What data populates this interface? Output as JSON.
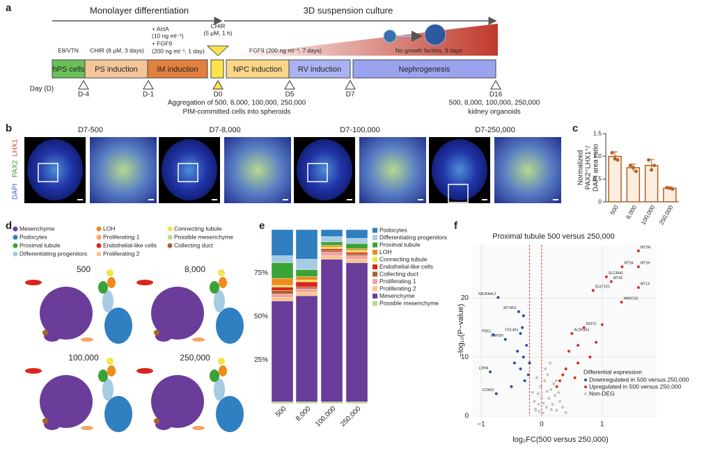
{
  "panel_a": {
    "label": "a",
    "phase_left": "Monolayer differentiation",
    "phase_right": "3D suspension culture",
    "condition_labels": [
      "E8/VTN",
      "CHIR (8 μM, 3 days)",
      "+ ActA",
      "(10 ng ml⁻¹)",
      "+ FGF9",
      "(200 ng ml⁻¹, 1 day)",
      "CHIR",
      "(5 μM, 1 h)",
      "FGF9 (200 ng ml⁻¹, 7 days)",
      "No growth factors, 9 days"
    ],
    "stages": [
      "hPS cells",
      "PS induction",
      "IM induction",
      "NPC induction",
      "RV induction",
      "Nephrogenesis"
    ],
    "day_axis_label": "Day (D)",
    "days": [
      "D-4",
      "D-1",
      "D0",
      "D5",
      "D7",
      "D16"
    ],
    "notes": [
      "Aggregation of 500, 8,000, 100,000, 250,000",
      "PIM-committed cells into spheroids",
      "500, 8,000, 100,000, 250,000",
      "kidney organoids"
    ]
  },
  "panel_b": {
    "label": "b",
    "stain_labels": [
      "DAPI",
      "PAX2",
      "LHX1"
    ],
    "titles": [
      "D7-500",
      "D7-8,000",
      "D7-100,000",
      "D7-250,000"
    ]
  },
  "panel_d": {
    "label": "d",
    "legend": [
      {
        "name": "Mesenchyme",
        "color": "#6a3d9a"
      },
      {
        "name": "Podocytes",
        "color": "#2f7fc1"
      },
      {
        "name": "Proximal tubule",
        "color": "#3aa335"
      },
      {
        "name": "Differentiating progenitors",
        "color": "#a6cbe3"
      },
      {
        "name": "LOH",
        "color": "#f08a1c"
      },
      {
        "name": "Proliferating 1",
        "color": "#f7a35c"
      },
      {
        "name": "Endothelial-like cells",
        "color": "#d9261c"
      },
      {
        "name": "Proliferating 2",
        "color": "#fbc58a"
      },
      {
        "name": "Connecting tubule",
        "color": "#f2e447"
      },
      {
        "name": "Possible mesenchyme",
        "color": "#b5dc8c"
      },
      {
        "name": "Collecting duct",
        "color": "#a8642a"
      }
    ],
    "umap_titles": [
      "500",
      "8,000",
      "100,000",
      "250,000"
    ]
  },
  "chart_data": [
    {
      "panel": "c",
      "type": "bar",
      "y_label": [
        "Normalized",
        "PAX2⁺LHX1⁺/",
        "DAPI area ratio"
      ],
      "categories": [
        "500",
        "8,000",
        "100,000",
        "250,000"
      ],
      "values": [
        1,
        0.75,
        0.8,
        0.3
      ],
      "errors": [
        0.1,
        0.08,
        0.13,
        0.03
      ],
      "points": [
        [
          1.08,
          0.95,
          0.92
        ],
        [
          0.8,
          0.75,
          0.67
        ],
        [
          0.92,
          0.7,
          0.8
        ],
        [
          0.31,
          0.3,
          0.28
        ]
      ],
      "color": "#b2601e",
      "ylim": [
        0,
        1.5
      ],
      "yticks": [
        0,
        {
          "value": 0.5,
          "label": "0.5"
        },
        {
          "value": 1,
          "label": "1.0"
        },
        {
          "value": 1.5,
          "label": "1.5"
        }
      ]
    },
    {
      "panel": "e",
      "type": "stacked_bar",
      "categories": [
        "500",
        "8,000",
        "100,000",
        "250,000"
      ],
      "series": [
        {
          "name": "Possible mesenchyme",
          "color": "#b5dc8c",
          "values": [
            1,
            1,
            1,
            1
          ]
        },
        {
          "name": "Mesenchyme",
          "color": "#6a3d9a",
          "values": [
            58,
            61,
            82,
            80
          ]
        },
        {
          "name": "Proliferating 2",
          "color": "#fbc58a",
          "values": [
            2,
            2,
            2,
            2
          ]
        },
        {
          "name": "Proliferating 1",
          "color": "#f4a0a0",
          "values": [
            2,
            2,
            2,
            2
          ]
        },
        {
          "name": "Collecting duct",
          "color": "#a8642a",
          "values": [
            2,
            1,
            1,
            1
          ]
        },
        {
          "name": "Endothelial-like cells",
          "color": "#d9261c",
          "values": [
            2,
            3,
            1,
            1
          ]
        },
        {
          "name": "Connecting tubule",
          "color": "#f2e447",
          "values": [
            1,
            1,
            1,
            1
          ]
        },
        {
          "name": "LOH",
          "color": "#f08a1c",
          "values": [
            4,
            2,
            1,
            1
          ]
        },
        {
          "name": "Proximal tubule",
          "color": "#3aa335",
          "values": [
            9,
            4,
            2,
            3
          ]
        },
        {
          "name": "Differentiating progenitors",
          "color": "#a6cbe3",
          "values": [
            4,
            6,
            3,
            3
          ]
        },
        {
          "name": "Podocytes",
          "color": "#2f7fc1",
          "values": [
            15,
            17,
            4,
            5
          ]
        }
      ],
      "ylim": [
        0,
        100
      ],
      "yticks": [
        {
          "value": 25,
          "label": "25%"
        },
        {
          "value": 50,
          "label": "50%"
        },
        {
          "value": 75,
          "label": "75%"
        }
      ]
    },
    {
      "panel": "f",
      "type": "scatter",
      "title": "Proximal tubule 500  versus 250,000",
      "x_label": "log₂FC(500 versus 250,000)",
      "y_label": "−log₁₀(P−value)",
      "xlim": [
        -1.15,
        1.9
      ],
      "ylim": [
        0,
        29
      ],
      "xticks": [
        {
          "value": -1,
          "label": "−1"
        },
        0,
        1
      ],
      "yticks": [
        0,
        10,
        20
      ],
      "thresholds": [
        -0.2,
        0
      ],
      "grid": true,
      "legend_title": "Differential expression",
      "series": [
        {
          "name": "Non-DEG",
          "color": "#c4c4c4",
          "x": [
            -0.1,
            -0.05,
            0.02,
            0.08,
            0.12,
            -0.15,
            0.18,
            0.25,
            -0.02,
            0.05,
            0.15,
            0.3,
            -0.12,
            0.1,
            0.22,
            0.0,
            -0.08,
            0.35,
            0.06,
            0.2,
            -0.04,
            0.28,
            0.14,
            -0.1,
            0.4,
            0.03,
            0.09,
            -0.06,
            0.16,
            0.24
          ],
          "y": [
            1,
            2,
            0.5,
            1.5,
            3,
            4,
            2,
            1,
            5,
            6,
            4.5,
            2.5,
            2.5,
            7,
            3.5,
            3,
            6.5,
            1.5,
            8,
            5.5,
            0.8,
            4,
            9,
            1.2,
            0.6,
            2.2,
            4.2,
            3.8,
            1.1,
            6
          ],
          "labels": null
        },
        {
          "name": "Downregulated in 500 versus 250,000",
          "color": "#2b4fa3",
          "x": [
            -0.72,
            -0.38,
            -0.35,
            -0.6,
            -0.8,
            -0.75,
            -0.85,
            -0.3,
            -0.25,
            -0.3,
            -0.2,
            -0.35,
            -0.4,
            -0.28,
            -0.22,
            -0.45,
            -0.32,
            -0.5
          ],
          "y": [
            20.1,
            17.7,
            14,
            13,
            13.8,
            3.8,
            7.5,
            17,
            12,
            10,
            9,
            8,
            11,
            6,
            7,
            9,
            15,
            5
          ],
          "labels": [
            "NDUFA4L2",
            "MT-ND1",
            "COL4A1",
            "GAPDH",
            "PGK1",
            "CCND1",
            "LDHA",
            null,
            null,
            null,
            null,
            null,
            null,
            null,
            null,
            null,
            null,
            null
          ]
        },
        {
          "name": "Upregulated in 500 versus 250,000",
          "color": "#d7301f",
          "x": [
            1.6,
            1.33,
            1.6,
            1.07,
            1.15,
            1.6,
            0.85,
            1.32,
            0.7,
            0.5,
            0.6,
            0.45,
            0.9,
            0.6,
            0.4,
            0.35,
            0.8,
            0.55,
            1.0,
            0.3,
            0.25
          ],
          "y": [
            28,
            25.3,
            25.3,
            23.6,
            22.8,
            21.8,
            21.3,
            19.3,
            15,
            14,
            12,
            11,
            12.5,
            9,
            8,
            7,
            10,
            6.5,
            15.5,
            6,
            5
          ],
          "labels": [
            "MT1M",
            "MT2A",
            "MT1H",
            "SLC30A1",
            "MT1E",
            "MT1X",
            "SULT1E1",
            "HMGCS1",
            "DDIT3",
            "ALDH1A1",
            null,
            null,
            null,
            null,
            null,
            null,
            null,
            null,
            null,
            null,
            null
          ]
        }
      ]
    }
  ]
}
